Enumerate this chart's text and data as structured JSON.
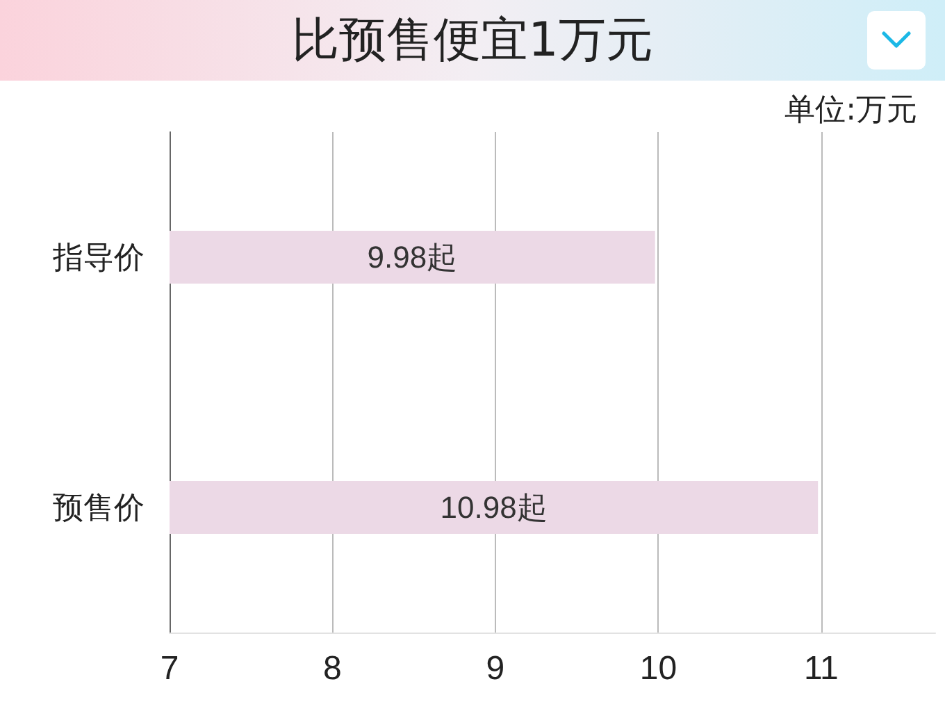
{
  "chart_data": {
    "type": "bar",
    "title": "比预售便宜1万元",
    "annotations": [
      "单位:万元"
    ],
    "orientation": "horizontal",
    "categories": [
      "指导价",
      "预售价"
    ],
    "values": [
      9.98,
      10.98
    ],
    "value_labels": [
      "9.98起",
      "10.98起"
    ],
    "color": "#ecd9e6",
    "xlim": [
      7,
      11.7
    ],
    "xticks": [
      7,
      8,
      9,
      10,
      11
    ],
    "grid": "x"
  }
}
